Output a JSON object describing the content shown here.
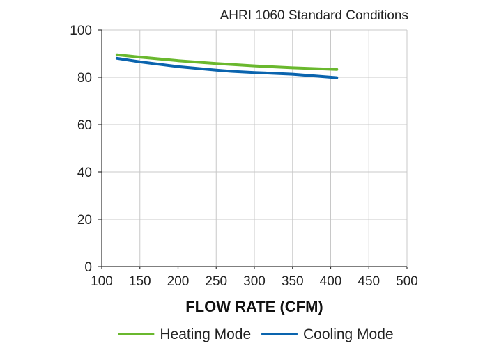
{
  "chart_data": {
    "type": "line",
    "title": "",
    "subtitle": "AHRI 1060 Standard Conditions",
    "xlabel": "FLOW RATE (CFM)",
    "ylabel": "",
    "xlim": [
      100,
      500
    ],
    "ylim": [
      0,
      100
    ],
    "x_ticks": [
      100,
      150,
      200,
      250,
      300,
      350,
      400,
      450,
      500
    ],
    "y_ticks": [
      0,
      20,
      40,
      60,
      80,
      100
    ],
    "grid": true,
    "legend_position": "bottom",
    "series": [
      {
        "name": "Heating Mode",
        "color": "#6ab82e",
        "x": [
          120,
          150,
          200,
          250,
          300,
          350,
          408
        ],
        "y": [
          89.5,
          88.5,
          87,
          85.8,
          84.8,
          84,
          83.3
        ]
      },
      {
        "name": "Cooling Mode",
        "color": "#0a64ae",
        "x": [
          120,
          150,
          200,
          250,
          270,
          300,
          350,
          408
        ],
        "y": [
          88,
          86.5,
          84.5,
          83,
          82.5,
          82,
          81.3,
          79.8
        ]
      }
    ]
  }
}
